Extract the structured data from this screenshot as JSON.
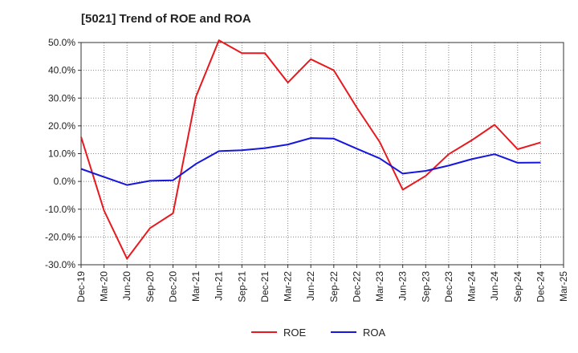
{
  "chart_data": {
    "type": "line",
    "title": "[5021]  Trend of ROE and ROA",
    "categories": [
      "Dec-19",
      "Mar-20",
      "Jun-20",
      "Sep-20",
      "Dec-20",
      "Mar-21",
      "Jun-21",
      "Sep-21",
      "Dec-21",
      "Mar-22",
      "Jun-22",
      "Sep-22",
      "Dec-22",
      "Mar-23",
      "Jun-23",
      "Sep-23",
      "Dec-23",
      "Mar-24",
      "Jun-24",
      "Sep-24",
      "Dec-24",
      "Mar-25"
    ],
    "series": [
      {
        "name": "ROE",
        "color": "#e8191e",
        "values": [
          16.0,
          -10.5,
          -27.8,
          -16.8,
          -11.5,
          30.5,
          50.8,
          46.2,
          46.2,
          35.6,
          44.0,
          40.0,
          26.6,
          14.2,
          -3.0,
          2.0,
          9.8,
          14.8,
          20.4,
          11.6,
          14.0,
          null
        ]
      },
      {
        "name": "ROA",
        "color": "#1616dc",
        "values": [
          4.5,
          1.6,
          -1.3,
          0.2,
          0.4,
          6.3,
          10.9,
          11.2,
          12.0,
          13.3,
          15.6,
          15.4,
          11.8,
          8.3,
          2.8,
          3.8,
          5.7,
          8.0,
          9.8,
          6.7,
          6.8,
          null
        ]
      }
    ],
    "ylim": [
      -30,
      50
    ],
    "yticks": [
      "-30.0%",
      "-20.0%",
      "-10.0%",
      "0.0%",
      "10.0%",
      "20.0%",
      "30.0%",
      "40.0%",
      "50.0%"
    ],
    "xlabel": "",
    "ylabel": "",
    "grid": true,
    "legend": "bottom-center"
  }
}
